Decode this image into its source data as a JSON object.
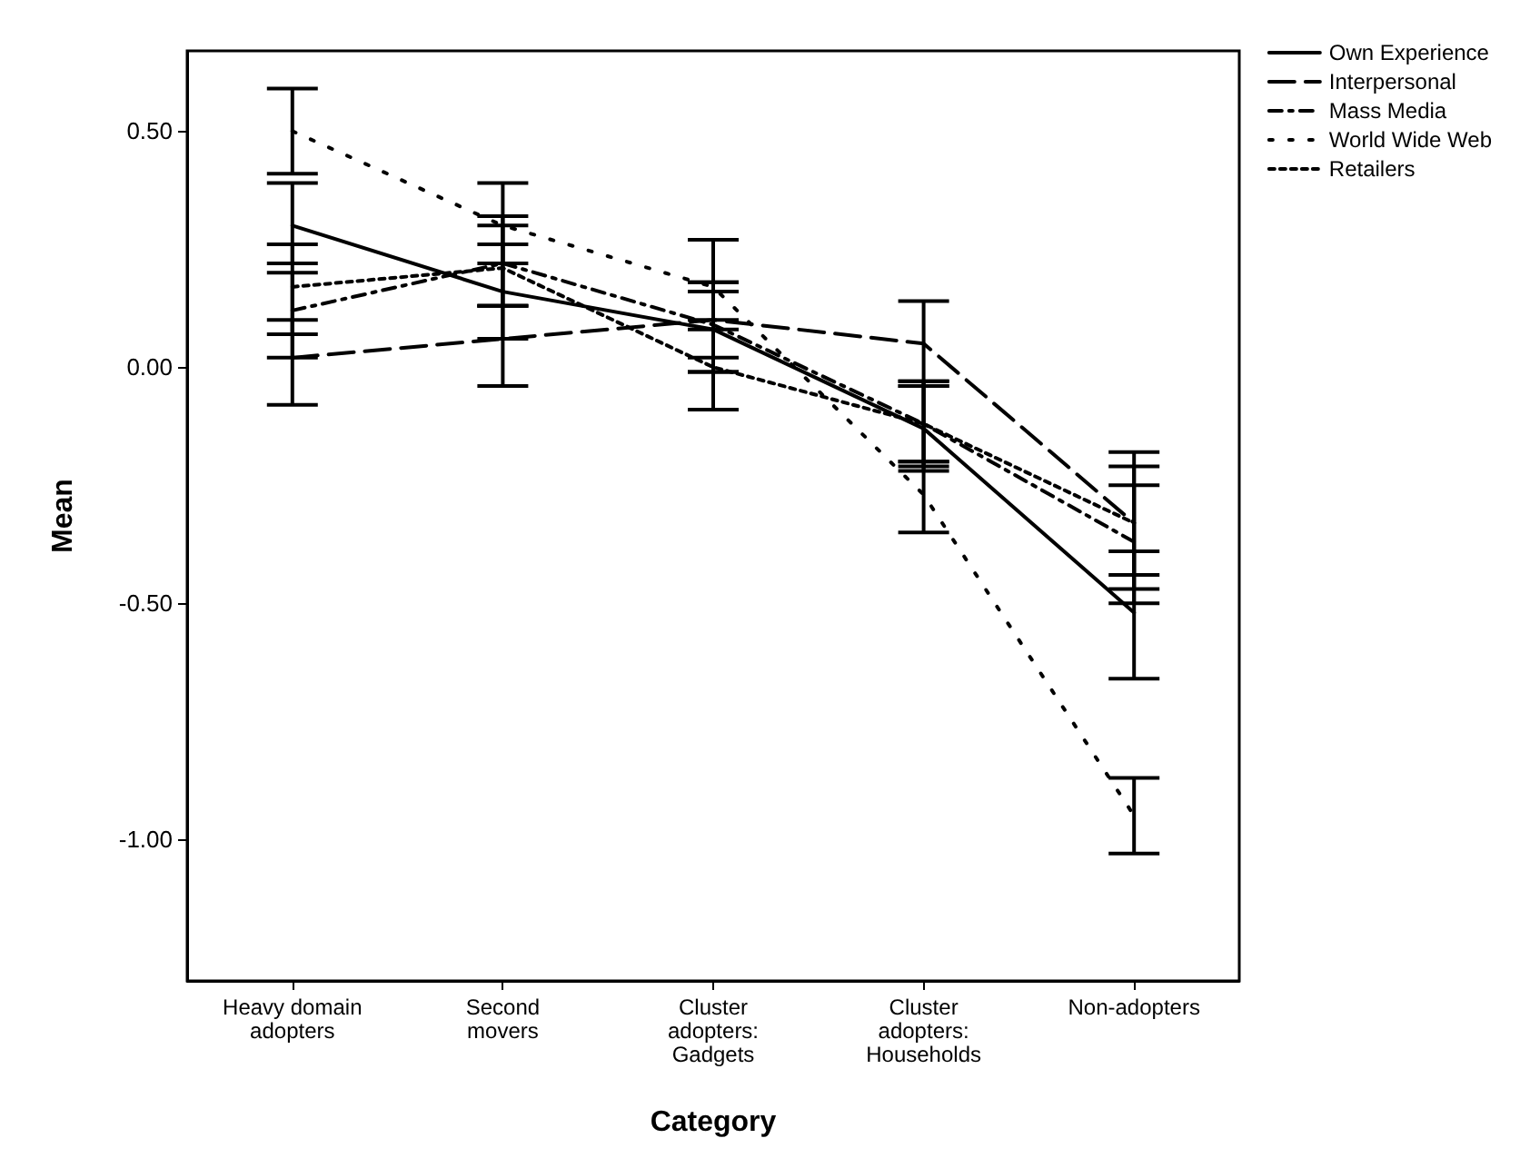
{
  "chart_data": {
    "type": "line",
    "xlabel": "Category",
    "ylabel": "Mean",
    "categories": [
      "Heavy domain\nadopters",
      "Second\nmovers",
      "Cluster\nadopters:\nGadgets",
      "Cluster\nadopters:\nHouseholds",
      "Non-adopters"
    ],
    "series": [
      {
        "name": "Own Experience",
        "color": "#000000",
        "line_style": "solid",
        "values": [
          0.3,
          0.16,
          0.08,
          -0.13,
          -0.52
        ],
        "errors": [
          [
            0.22,
            0.39
          ],
          [
            0.06,
            0.26
          ],
          [
            -0.01,
            0.16
          ],
          [
            -0.22,
            -0.03
          ],
          [
            -0.66,
            -0.39
          ]
        ]
      },
      {
        "name": "Interpersonal",
        "color": "#000000",
        "line_style": "dashed",
        "values": [
          0.02,
          0.06,
          0.1,
          0.05,
          -0.33
        ],
        "errors": [
          [
            -0.08,
            0.1
          ],
          [
            -0.04,
            0.13
          ],
          [
            0.02,
            0.18
          ],
          [
            -0.04,
            0.14
          ],
          [
            -0.47,
            -0.18
          ]
        ]
      },
      {
        "name": "Mass Media",
        "color": "#000000",
        "line_style": "dashed",
        "values": [
          0.12,
          0.22,
          0.09,
          -0.12,
          -0.37
        ],
        "errors": [
          [
            0.02,
            0.2
          ],
          [
            0.13,
            0.32
          ],
          [
            -0.01,
            0.18
          ],
          [
            -0.21,
            -0.03
          ],
          [
            -0.5,
            -0.25
          ]
        ]
      },
      {
        "name": "World Wide Web",
        "color": "#000000",
        "line_style": "dotted",
        "values": [
          0.5,
          0.3,
          0.17,
          -0.27,
          -0.95
        ],
        "errors": [
          [
            0.41,
            0.59
          ],
          [
            0.22,
            0.39
          ],
          [
            0.08,
            0.27
          ],
          [
            -0.35,
            -0.2
          ],
          [
            -1.03,
            -0.87
          ]
        ]
      },
      {
        "name": "Retailers",
        "color": "#000000",
        "line_style": "dotted",
        "values": [
          0.17,
          0.21,
          0.0,
          -0.12,
          -0.33
        ],
        "errors": [
          [
            0.07,
            0.26
          ],
          [
            0.13,
            0.3
          ],
          [
            -0.09,
            0.1
          ],
          [
            -0.2,
            -0.04
          ],
          [
            -0.44,
            -0.21
          ]
        ]
      }
    ],
    "ylim": [
      -1.3,
      0.67
    ],
    "yticks": [
      {
        "value": -1,
        "label": "-1.00"
      },
      {
        "value": -0.5,
        "label": "-0.50"
      },
      {
        "value": 0,
        "label": "0.00"
      },
      {
        "value": 0.5,
        "label": "0.50"
      }
    ],
    "grid": false,
    "legend": "top right",
    "marker": "none"
  }
}
